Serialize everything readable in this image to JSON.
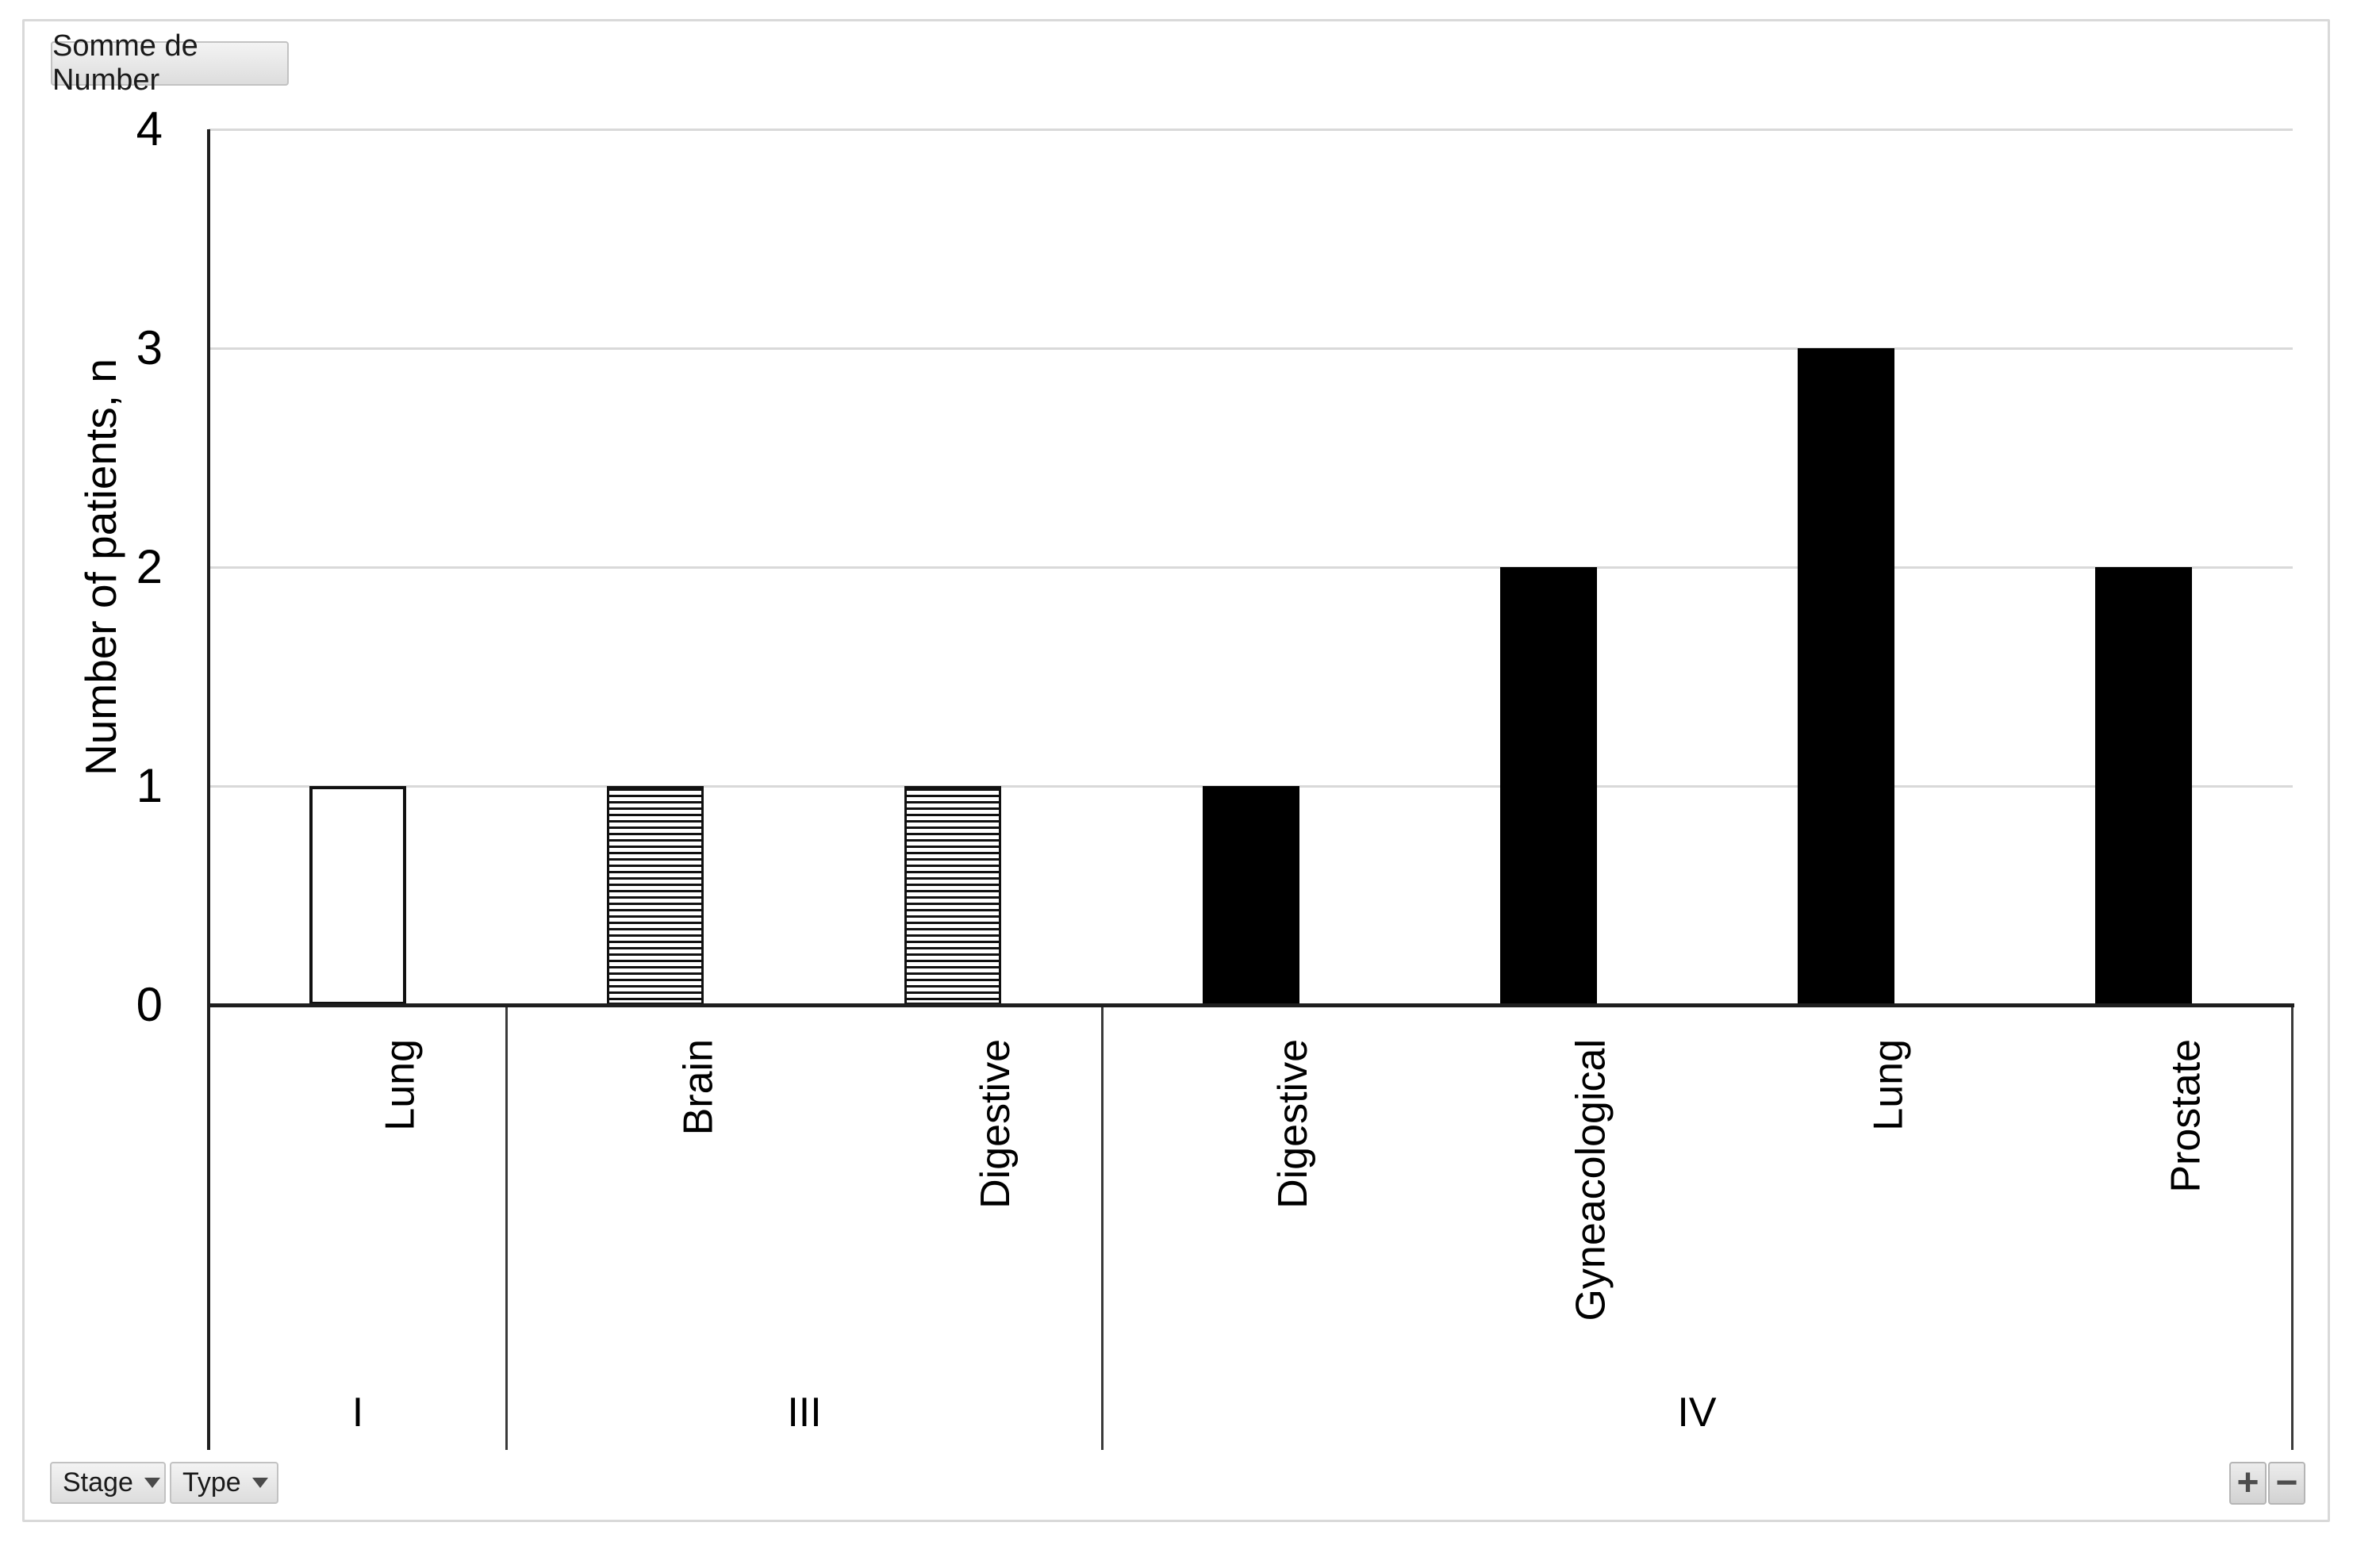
{
  "pivot_controls": {
    "value_field_button": "Somme de Number",
    "axis_field_buttons": [
      "Stage",
      "Type"
    ],
    "expand_button": "+",
    "collapse_button": "−"
  },
  "chart_data": {
    "type": "bar",
    "title": "",
    "xlabel": "",
    "ylabel": "Number of patients, n",
    "ylim": [
      0,
      4
    ],
    "yticks": [
      0,
      1,
      2,
      3,
      4
    ],
    "grid": true,
    "legend": null,
    "x_axis_levels": [
      "Stage",
      "Type"
    ],
    "groups": [
      {
        "stage": "I",
        "items": [
          {
            "category": "Lung",
            "value": 1,
            "fill": "white-outline"
          }
        ]
      },
      {
        "stage": "III",
        "items": [
          {
            "category": "Brain",
            "value": 1,
            "fill": "horizontal-stripes"
          },
          {
            "category": "Digestive",
            "value": 1,
            "fill": "horizontal-stripes"
          }
        ]
      },
      {
        "stage": "IV",
        "items": [
          {
            "category": "Digestive",
            "value": 1,
            "fill": "solid-black"
          },
          {
            "category": "Gyneacological",
            "value": 2,
            "fill": "solid-black"
          },
          {
            "category": "Lung",
            "value": 3,
            "fill": "solid-black"
          },
          {
            "category": "Prostate",
            "value": 2,
            "fill": "solid-black"
          }
        ]
      }
    ],
    "colors": {
      "bar_fill": "#000000",
      "gridline": "#d9d9d9",
      "axis_line": "#1f1f1f",
      "frame_border": "#d9d9d9",
      "button_bg": "#e6e6e6",
      "text": "#000000"
    }
  }
}
